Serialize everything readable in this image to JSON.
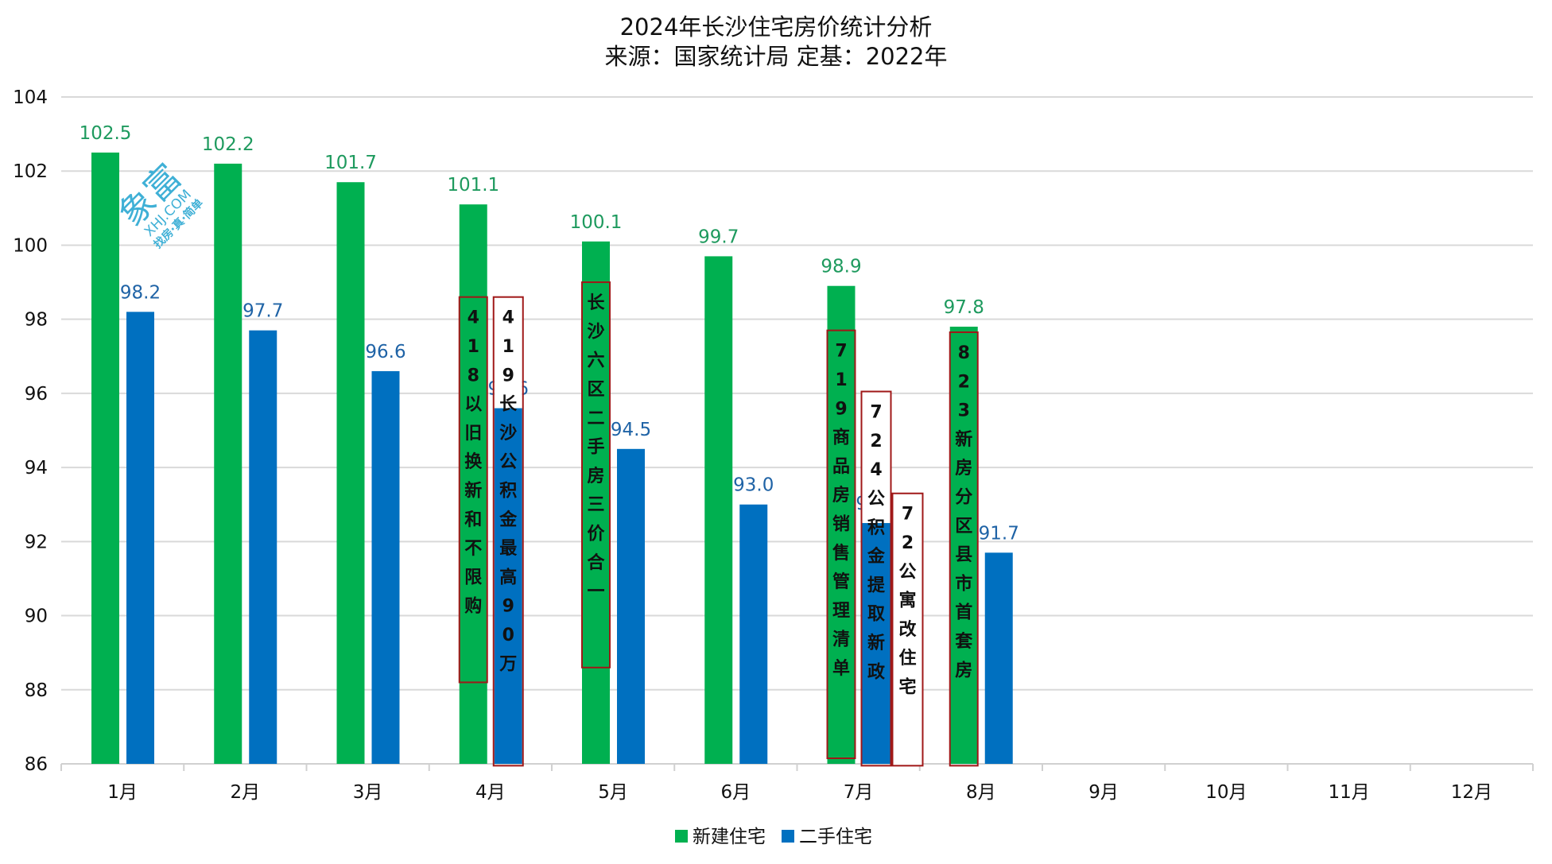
{
  "chart_data": {
    "type": "bar",
    "title": "2024年长沙住宅房价统计分析",
    "subtitle": "来源：国家统计局 定基：2022年",
    "xlabel": "",
    "ylabel": "",
    "ylim": [
      86,
      104
    ],
    "yticks": [
      86,
      88,
      90,
      92,
      94,
      96,
      98,
      100,
      102,
      104
    ],
    "ytick_labels": [
      "86",
      "88",
      "90",
      "92",
      "94",
      "96",
      "98",
      "100",
      "102",
      "104"
    ],
    "grid": true,
    "legend_position": "bottom-center",
    "categories": [
      "1月",
      "2月",
      "3月",
      "4月",
      "5月",
      "6月",
      "7月",
      "8月",
      "9月",
      "10月",
      "11月",
      "12月"
    ],
    "series": [
      {
        "name": "新建住宅",
        "color": "#00B050",
        "label_color": "#1e9a5e",
        "values": [
          102.5,
          102.2,
          101.7,
          101.1,
          100.1,
          99.7,
          98.9,
          97.8,
          null,
          null,
          null,
          null
        ],
        "labels": [
          "102.5",
          "102.2",
          "101.7",
          "101.1",
          "100.1",
          "99.7",
          "98.9",
          "97.8"
        ]
      },
      {
        "name": "二手住宅",
        "color": "#0070C0",
        "label_color": "#1f63a6",
        "values": [
          98.2,
          97.7,
          96.6,
          95.6,
          94.5,
          93.0,
          92.5,
          91.7,
          null,
          null,
          null,
          null
        ],
        "labels": [
          "98.2",
          "97.7",
          "96.6",
          "95.6",
          "94.5",
          "93.0",
          "92.5",
          "91.7"
        ]
      }
    ],
    "annotations": [
      {
        "category": "4月",
        "anchor": "green",
        "top_value": 98.6,
        "bottom_value": 88.2,
        "fill": "transparent",
        "text": "418以旧换新和不限购"
      },
      {
        "category": "4月",
        "anchor": "blue",
        "top_value": 98.6,
        "bottom_value": 85.95,
        "fill": "white-over-blue",
        "text": "419长沙公积金最高90万"
      },
      {
        "category": "5月",
        "anchor": "green",
        "top_value": 99.0,
        "bottom_value": 88.6,
        "fill": "transparent",
        "text": "长沙六区二手房三价合一"
      },
      {
        "category": "7月",
        "anchor": "green",
        "top_value": 97.7,
        "bottom_value": 86.15,
        "fill": "transparent",
        "text": "719商品房销售管理清单"
      },
      {
        "category": "7月",
        "anchor": "blue",
        "top_value": 96.05,
        "bottom_value": 85.95,
        "fill": "white-over-blue",
        "text": "724公积金提取新政"
      },
      {
        "category": "7月",
        "anchor": "extra",
        "top_value": 93.3,
        "bottom_value": 85.95,
        "fill": "white",
        "text": "72公寓改住宅"
      },
      {
        "category": "8月",
        "anchor": "green",
        "top_value": 97.65,
        "bottom_value": 85.95,
        "fill": "transparent",
        "text": "823新房分区县市首套房"
      }
    ],
    "annotation_border_color": "#a01818"
  },
  "watermark": {
    "logo": "象富",
    "site": "XHJ.COM",
    "slogan": "找房·真·简单"
  }
}
